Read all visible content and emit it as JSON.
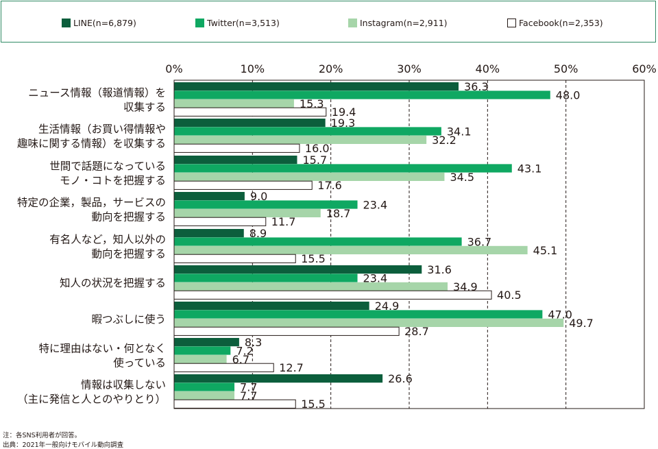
{
  "chart_data": {
    "type": "bar",
    "orientation": "horizontal",
    "xlim": [
      0,
      60
    ],
    "x_ticks": [
      "0%",
      "10%",
      "20%",
      "30%",
      "40%",
      "50%",
      "60%"
    ],
    "grid": "vertical dashed",
    "legend_position": "top",
    "categories": [
      [
        "ニュース情報（報道情報）を",
        "収集する"
      ],
      [
        "生活情報（お買い得情報や",
        "趣味に関する情報）を収集する"
      ],
      [
        "世間で話題になっている",
        "モノ・コトを把握する"
      ],
      [
        "特定の企業，製品，サービスの",
        "動向を把握する"
      ],
      [
        "有名人など，知人以外の",
        "動向を把握する"
      ],
      [
        "知人の状況を把握する"
      ],
      [
        "暇つぶしに使う"
      ],
      [
        "特に理由はない・何となく",
        "使っている"
      ],
      [
        "情報は収集しない",
        "（主に発信と人とのやりとり）"
      ]
    ],
    "series": [
      {
        "name": "LINE(n=6,879)",
        "color": "#0c5e3c",
        "values": [
          36.3,
          19.3,
          15.7,
          9.0,
          8.9,
          31.6,
          24.9,
          8.3,
          26.6
        ]
      },
      {
        "name": "Twitter(n=3,513)",
        "color": "#0fa862",
        "values": [
          48.0,
          34.1,
          43.1,
          23.4,
          36.7,
          23.4,
          47.0,
          7.2,
          7.7
        ]
      },
      {
        "name": "Instagram(n=2,911)",
        "color": "#a6d5a9",
        "values": [
          15.3,
          32.2,
          34.5,
          18.7,
          45.1,
          34.9,
          49.7,
          6.7,
          7.7
        ]
      },
      {
        "name": "Facebook(n=2,353)",
        "color": "#ffffff",
        "values": [
          19.4,
          16.0,
          17.6,
          11.7,
          15.5,
          40.5,
          28.7,
          12.7,
          15.5
        ]
      }
    ],
    "value_labels": [
      [
        "36.3",
        "19.3",
        "15.7",
        "9.0",
        "8.9",
        "31.6",
        "24.9",
        "8.3",
        "26.6"
      ],
      [
        "48.0",
        "34.1",
        "43.1",
        "23.4",
        "36.7",
        "23.4",
        "47.0",
        "7.2",
        "7.7"
      ],
      [
        "15.3",
        "32.2",
        "34.5",
        "18.7",
        "45.1",
        "34.9",
        "49.7",
        "6.7",
        "7.7"
      ],
      [
        "19.4",
        "16.0",
        "17.6",
        "11.7",
        "15.5",
        "40.5",
        "28.7",
        "12.7",
        "15.5"
      ]
    ]
  },
  "notes": {
    "note1": "注：各SNS利用者が回答。",
    "note2": "出典：2021年一般向けモバイル動向調査"
  }
}
